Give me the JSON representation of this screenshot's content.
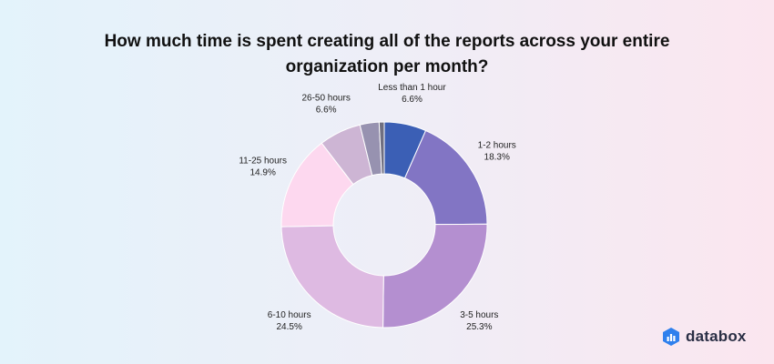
{
  "title": "How much time is spent creating all of the reports across your entire organization per month?",
  "brand": {
    "name": "databox",
    "logo_icon": "databox-logo-icon",
    "logo_color": "#2f80ed"
  },
  "chart_data": {
    "type": "pie",
    "donut": true,
    "title": "How much time is spent creating all of the reports across your entire organization per month?",
    "slices": [
      {
        "label": "Less than 1 hour",
        "value": 6.6,
        "value_label": "6.6%",
        "color": "#3b5fb5"
      },
      {
        "label": "1-2 hours",
        "value": 18.3,
        "value_label": "18.3%",
        "color": "#8275c4"
      },
      {
        "label": "3-5 hours",
        "value": 25.3,
        "value_label": "25.3%",
        "color": "#b48fd0"
      },
      {
        "label": "6-10 hours",
        "value": 24.5,
        "value_label": "24.5%",
        "color": "#debae2"
      },
      {
        "label": "11-25 hours",
        "value": 14.9,
        "value_label": "14.9%",
        "color": "#fdd8ef"
      },
      {
        "label": "26-50 hours",
        "value": 6.6,
        "value_label": "6.6%",
        "color": "#cdb5d4"
      },
      {
        "label": "",
        "value": 3.0,
        "value_label": "",
        "color": "#9792b0"
      },
      {
        "label": "",
        "value": 0.8,
        "value_label": "",
        "color": "#6f6f80"
      }
    ]
  }
}
